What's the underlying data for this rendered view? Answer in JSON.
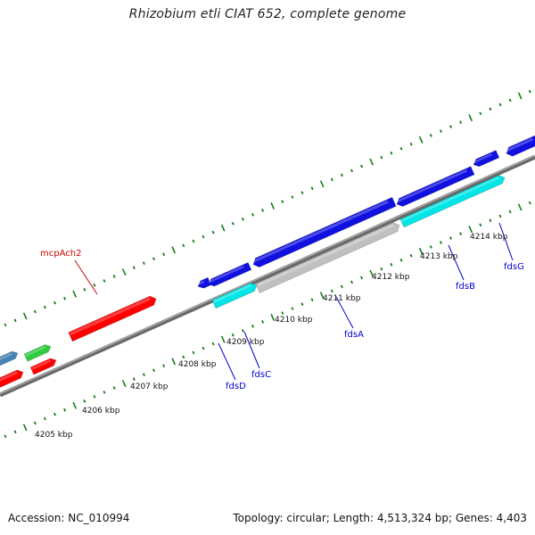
{
  "title": "Rhizobium etli CIAT 652, complete genome",
  "footer": {
    "accession": "Accession: NC_010994",
    "summary": "Topology: circular; Length: 4,513,324 bp; Genes: 4,403"
  },
  "colors": {
    "red": "#ff0000",
    "green": "#2ecc40",
    "steelblue": "#4682b4",
    "blue": "#1010e0",
    "cyan": "#00e5e5",
    "gray": "#c0c0c0",
    "tick": "#1a7a1a",
    "backbone": "#707070",
    "label_red": "#cc0000",
    "label_blue": "#0000cc"
  },
  "scale_labels": [
    "4205 kbp",
    "4206 kbp",
    "4207 kbp",
    "4208 kbp",
    "4209 kbp",
    "4210 kbp",
    "4211 kbp",
    "4212 kbp",
    "4213 kbp",
    "4214 kbp"
  ],
  "gene_labels": [
    {
      "name": "mcpAch2",
      "color": "label_red"
    },
    {
      "name": "fdsD",
      "color": "label_blue"
    },
    {
      "name": "fdsC",
      "color": "label_blue"
    },
    {
      "name": "fdsA",
      "color": "label_blue"
    },
    {
      "name": "fdsB",
      "color": "label_blue"
    },
    {
      "name": "fdsG",
      "color": "label_blue"
    }
  ]
}
